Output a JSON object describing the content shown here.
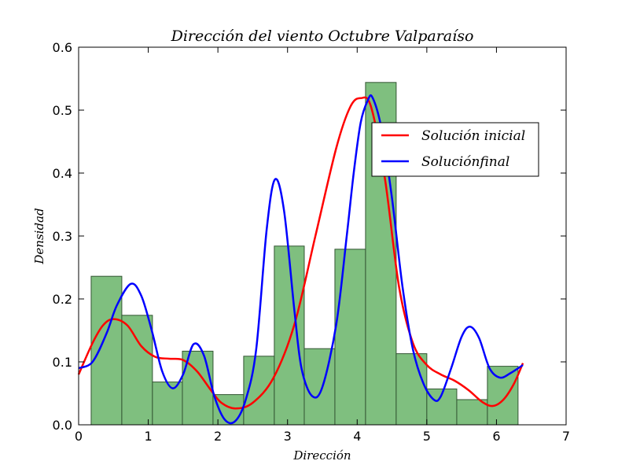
{
  "chart_data": {
    "type": "bar",
    "title": "Dirección del viento Octubre Valparaíso",
    "xlabel": "Dirección",
    "ylabel": "Densidad",
    "xlim": [
      0,
      7
    ],
    "ylim": [
      0,
      0.6
    ],
    "xticks": [
      "0",
      "1",
      "2",
      "3",
      "4",
      "5",
      "6",
      "7"
    ],
    "yticks": [
      "0.0",
      "0.1",
      "0.2",
      "0.3",
      "0.4",
      "0.5",
      "0.6"
    ],
    "grid": false,
    "legend_position": "upper-right",
    "histogram": {
      "bin_edges": [
        0.18,
        0.62,
        1.06,
        1.49,
        1.93,
        2.37,
        2.81,
        3.24,
        3.68,
        4.12,
        4.56,
        5.0,
        5.43,
        5.87,
        6.31
      ],
      "values": [
        0.236,
        0.174,
        0.068,
        0.117,
        0.048,
        0.109,
        0.284,
        0.121,
        0.279,
        0.544,
        0.113,
        0.057,
        0.04,
        0.093
      ],
      "color": "#7fbf7f",
      "edge_color": "#335533"
    },
    "series": [
      {
        "name": "Solución inicial",
        "color": "#ff0000",
        "x": [
          0.0,
          0.2,
          0.35,
          0.5,
          0.7,
          0.9,
          1.1,
          1.3,
          1.5,
          1.7,
          1.9,
          2.05,
          2.25,
          2.5,
          2.8,
          3.1,
          3.4,
          3.7,
          3.9,
          4.05,
          4.2,
          4.4,
          4.6,
          4.8,
          5.0,
          5.2,
          5.4,
          5.6,
          5.8,
          5.95,
          6.1,
          6.25,
          6.38
        ],
        "y": [
          0.08,
          0.13,
          0.158,
          0.168,
          0.158,
          0.125,
          0.108,
          0.105,
          0.103,
          0.085,
          0.055,
          0.035,
          0.026,
          0.035,
          0.075,
          0.16,
          0.3,
          0.44,
          0.505,
          0.519,
          0.505,
          0.39,
          0.22,
          0.13,
          0.095,
          0.08,
          0.07,
          0.055,
          0.036,
          0.03,
          0.04,
          0.065,
          0.098
        ]
      },
      {
        "name": "Soluciónfinal",
        "color": "#0000ff",
        "x": [
          0.0,
          0.2,
          0.4,
          0.55,
          0.75,
          0.9,
          1.05,
          1.2,
          1.35,
          1.5,
          1.65,
          1.8,
          1.95,
          2.1,
          2.25,
          2.4,
          2.55,
          2.7,
          2.82,
          2.95,
          3.1,
          3.2,
          3.35,
          3.5,
          3.7,
          3.85,
          3.95,
          4.05,
          4.15,
          4.22,
          4.35,
          4.5,
          4.65,
          4.8,
          4.95,
          5.1,
          5.2,
          5.35,
          5.5,
          5.62,
          5.75,
          5.9,
          6.05,
          6.2,
          6.38
        ],
        "y": [
          0.09,
          0.1,
          0.145,
          0.19,
          0.224,
          0.205,
          0.15,
          0.085,
          0.058,
          0.08,
          0.128,
          0.11,
          0.045,
          0.008,
          0.006,
          0.04,
          0.12,
          0.31,
          0.39,
          0.34,
          0.18,
          0.09,
          0.046,
          0.06,
          0.16,
          0.3,
          0.4,
          0.48,
          0.515,
          0.52,
          0.47,
          0.36,
          0.22,
          0.12,
          0.066,
          0.04,
          0.045,
          0.09,
          0.14,
          0.156,
          0.138,
          0.09,
          0.075,
          0.082,
          0.095
        ]
      }
    ]
  }
}
